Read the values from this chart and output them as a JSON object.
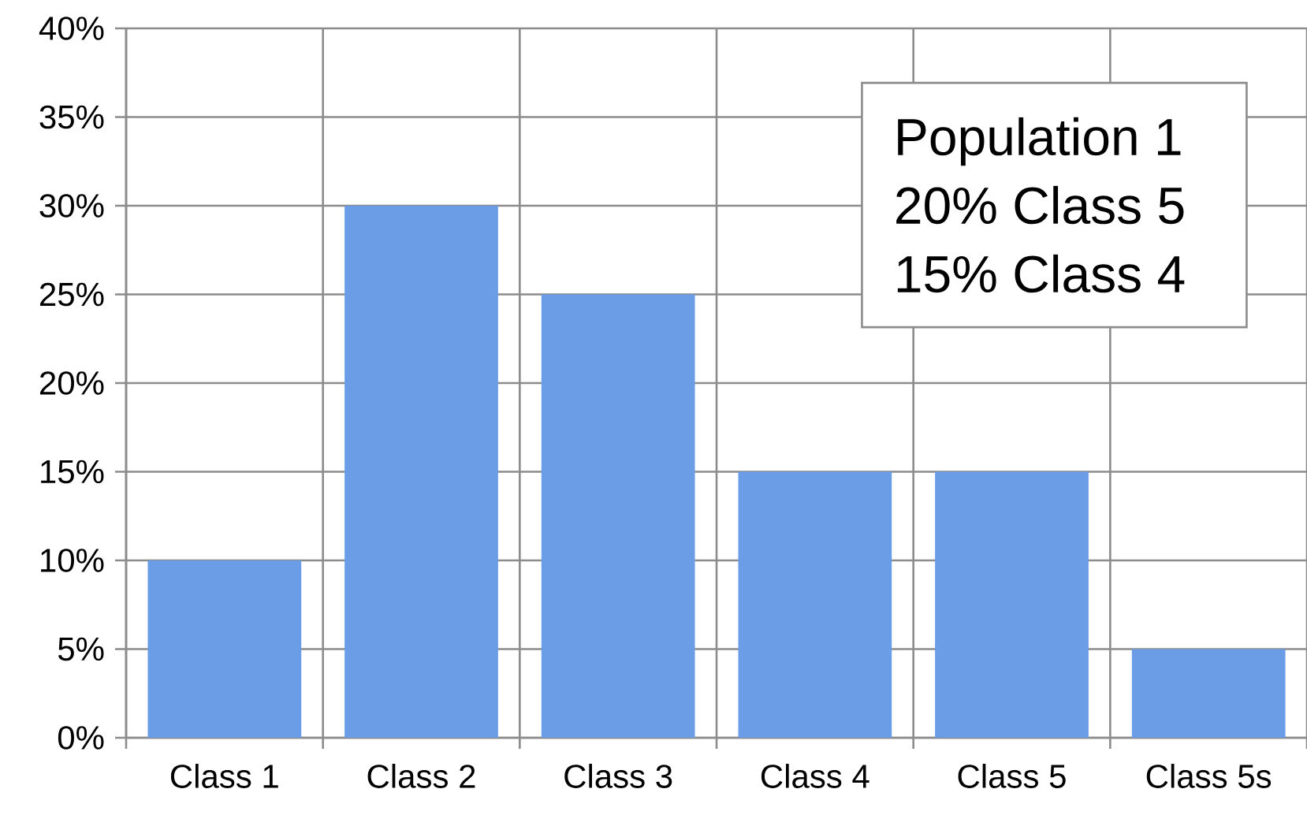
{
  "chart_data": {
    "type": "bar",
    "categories": [
      "Class 1",
      "Class 2",
      "Class 3",
      "Class 4",
      "Class 5",
      "Class 5s"
    ],
    "values": [
      10,
      30,
      25,
      15,
      15,
      5
    ],
    "color": "#6a9de5",
    "ylim": [
      0,
      40
    ],
    "yticks": [
      {
        "value": 0,
        "label": "0%"
      },
      {
        "value": 5,
        "label": "5%"
      },
      {
        "value": 10,
        "label": "10%"
      },
      {
        "value": 15,
        "label": "15%"
      },
      {
        "value": 20,
        "label": "20%"
      },
      {
        "value": 25,
        "label": "25%"
      },
      {
        "value": 30,
        "label": "30%"
      },
      {
        "value": 35,
        "label": "35%"
      },
      {
        "value": 40,
        "label": "40%"
      }
    ],
    "grid": true,
    "annotations": [
      "Population 1",
      "20% Class 5",
      "15% Class 4"
    ]
  }
}
